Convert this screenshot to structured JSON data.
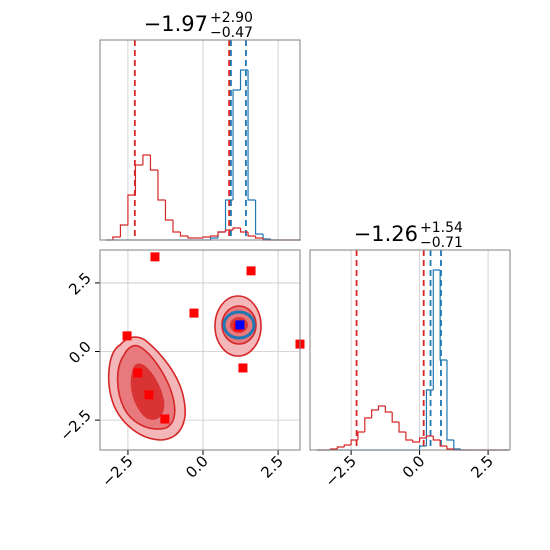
{
  "chart_data": [
    {
      "type": "histogram",
      "title": "−1.97",
      "title_sup": "+2.90",
      "title_sub": "−0.47",
      "xlim": [
        -3.43,
        3.23
      ],
      "ylim": [
        0,
        200
      ],
      "xticks": [
        {
          "value": -2.5,
          "label": "−2.5"
        },
        {
          "value": 0,
          "label": "0.0"
        },
        2.5
      ],
      "bins": [
        -3.25,
        -3.0,
        -2.75,
        -2.5,
        -2.25,
        -2.0,
        -1.75,
        -1.5,
        -1.25,
        -1.0,
        -0.75,
        -0.5,
        -0.25,
        0.0,
        0.25,
        0.5,
        0.75,
        1.0,
        1.25,
        1.5,
        1.75,
        2.0,
        2.25,
        2.5,
        2.75,
        3.0,
        3.25
      ],
      "series": [
        {
          "color": "#1f77b4",
          "values": [
            0,
            0,
            0,
            0,
            0,
            0,
            0,
            0,
            0,
            0,
            0,
            0,
            0,
            0,
            2,
            8,
            40,
            150,
            170,
            40,
            6,
            1,
            0,
            0,
            0,
            0
          ],
          "quantiles": [
            0.93,
            1.43
          ]
        },
        {
          "color": "#d62728",
          "values": [
            0,
            3,
            15,
            45,
            75,
            85,
            70,
            40,
            20,
            8,
            4,
            2,
            2,
            3,
            4,
            8,
            10,
            12,
            8,
            4,
            2,
            0,
            0,
            0,
            0,
            0
          ],
          "quantiles": [
            -2.27,
            0.87
          ]
        }
      ],
      "grid": true
    },
    {
      "type": "scatter",
      "xlim": [
        -3.43,
        3.23
      ],
      "ylim": [
        -3.59,
        3.7
      ],
      "xticks": [
        {
          "value": -2.5,
          "label": "−2.5"
        },
        {
          "value": 0,
          "label": "0.0"
        },
        2.5
      ],
      "yticks": [
        {
          "value": -2.5,
          "label": "−2.5"
        },
        {
          "value": 0,
          "label": "0.0"
        },
        2.5
      ],
      "series": [
        {
          "color": "#ff0000",
          "x": [
            -1.6,
            1.6,
            -0.3,
            -2.53,
            1.17,
            3.23,
            1.33,
            -2.17,
            -1.8,
            -1.27
          ],
          "values": [
            3.45,
            2.94,
            1.4,
            0.57,
            0.9,
            0.27,
            -0.6,
            -0.78,
            -1.58,
            -2.46
          ]
        },
        {
          "color": "#0000ff",
          "x": [
            1.23
          ],
          "values": [
            0.97
          ]
        }
      ],
      "grid": true
    },
    {
      "type": "histogram",
      "title": "−1.26",
      "title_sup": "+1.54",
      "title_sub": "−0.71",
      "xlim": [
        -4.0,
        3.3
      ],
      "ylim": [
        0,
        200
      ],
      "xticks": [
        {
          "value": -2.5,
          "label": "−2.5"
        },
        {
          "value": 0,
          "label": "0.0"
        },
        2.5
      ],
      "bins": [
        -3.75,
        -3.5,
        -3.25,
        -3.0,
        -2.75,
        -2.5,
        -2.25,
        -2.0,
        -1.75,
        -1.5,
        -1.25,
        -1.0,
        -0.75,
        -0.5,
        -0.25,
        0.0,
        0.25,
        0.5,
        0.75,
        1.0,
        1.25,
        1.5,
        1.75,
        2.0,
        2.25,
        2.5,
        2.75,
        3.0,
        3.25
      ],
      "series": [
        {
          "color": "#1f77b4",
          "values": [
            0,
            0,
            0,
            0,
            0,
            0,
            0,
            0,
            0,
            0,
            0,
            0,
            0,
            0,
            0,
            4,
            60,
            180,
            90,
            10,
            1,
            0,
            0,
            0,
            0,
            0,
            0,
            0
          ],
          "quantiles": [
            0.4,
            0.78
          ]
        },
        {
          "color": "#d62728",
          "values": [
            0,
            0,
            1,
            3,
            5,
            10,
            18,
            32,
            40,
            44,
            38,
            28,
            18,
            10,
            8,
            12,
            14,
            10,
            4,
            1,
            0,
            0,
            0,
            0,
            0,
            0,
            0,
            0
          ],
          "quantiles": [
            -2.3,
            0.15
          ]
        }
      ],
      "grid": true
    }
  ]
}
